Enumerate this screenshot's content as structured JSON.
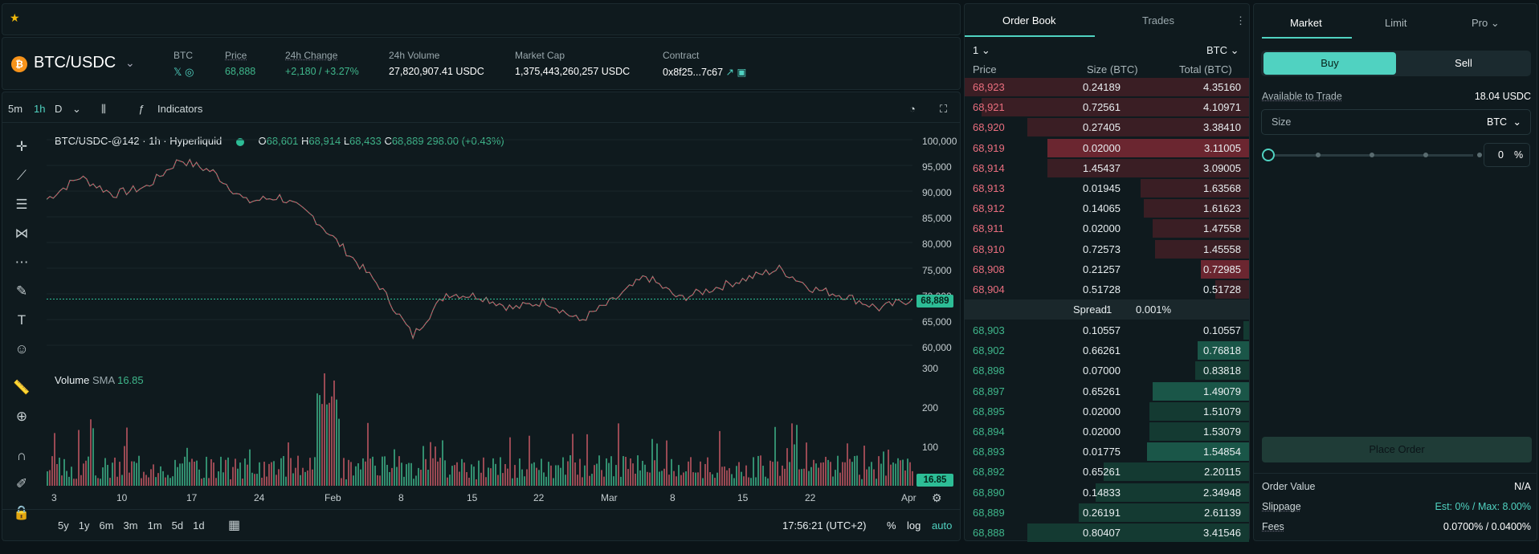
{
  "market": {
    "pair": "BTC/USDC",
    "base": "BTC",
    "price_label": "Price",
    "price": "68,888",
    "change_label": "24h Change",
    "change": "+2,180 / +3.27%",
    "volume_label": "24h Volume",
    "volume": "27,820,907.41 USDC",
    "cap_label": "Market Cap",
    "cap": "1,375,443,260,257 USDC",
    "contract_label": "Contract",
    "contract": "0x8f25...7c67"
  },
  "toolbar": {
    "intervals": [
      "5m",
      "1h",
      "D"
    ],
    "indicators": "Indicators"
  },
  "legend": {
    "title": "BTC/USDC-@142 · 1h · Hyperliquid",
    "o_label": "O",
    "o": "68,601",
    "h_label": "H",
    "h": "68,914",
    "l_label": "L",
    "l": "68,433",
    "c_label": "C",
    "c": "68,889",
    "chg": "298.00 (+0.43%)",
    "volume": "Volume",
    "sma": "SMA",
    "sma_val": "16.85"
  },
  "chart_data": {
    "type": "line",
    "title": "BTC/USDC-@142 · 1h · Hyperliquid",
    "y_ticks": [
      "100,000",
      "95,000",
      "90,000",
      "85,000",
      "80,000",
      "75,000",
      "70,000",
      "65,000",
      "60,000"
    ],
    "vol_ticks": [
      "300",
      "200",
      "100"
    ],
    "x_ticks": [
      "3",
      "10",
      "17",
      "24",
      "Feb",
      "8",
      "15",
      "22",
      "Mar",
      "8",
      "15",
      "22",
      "Apr"
    ],
    "last_price": "68,889",
    "last_volume": "16.85",
    "ylim": [
      57000,
      101000
    ],
    "x": [
      "Jan 3",
      "Jan 6",
      "Jan 10",
      "Jan 13",
      "Jan 17",
      "Jan 20",
      "Jan 24",
      "Jan 27",
      "Jan 30",
      "Feb 2",
      "Feb 5",
      "Feb 8",
      "Feb 11",
      "Feb 15",
      "Feb 19",
      "Feb 22",
      "Feb 26",
      "Mar 1",
      "Mar 4",
      "Mar 8",
      "Mar 11",
      "Mar 15",
      "Mar 18",
      "Mar 22",
      "Mar 25",
      "Mar 29",
      "Apr 1"
    ],
    "values": [
      89000,
      93500,
      90000,
      91500,
      97000,
      94500,
      88500,
      89500,
      85500,
      78500,
      71500,
      61500,
      70000,
      69500,
      67000,
      68500,
      64500,
      68500,
      73500,
      69000,
      71000,
      73000,
      75000,
      71000,
      69500,
      67000,
      68900
    ]
  },
  "footer": {
    "ranges": [
      "5y",
      "1y",
      "6m",
      "3m",
      "1m",
      "5d",
      "1d"
    ],
    "time": "17:56:21 (UTC+2)",
    "pct": "%",
    "log": "log",
    "auto": "auto"
  },
  "book": {
    "tab1": "Order Book",
    "tab2": "Trades",
    "tick": "1",
    "unit": "BTC",
    "h_price": "Price",
    "h_size": "Size (BTC)",
    "h_total": "Total (BTC)",
    "asks": [
      {
        "p": "68,923",
        "s": "0.24189",
        "t": "4.35160",
        "d": 1.0
      },
      {
        "p": "68,921",
        "s": "0.72561",
        "t": "4.10971",
        "d": 0.94
      },
      {
        "p": "68,920",
        "s": "0.27405",
        "t": "3.38410",
        "d": 0.78
      },
      {
        "p": "68,919",
        "s": "0.02000",
        "t": "3.11005",
        "d": 0.71,
        "hl": 1
      },
      {
        "p": "68,914",
        "s": "1.45437",
        "t": "3.09005",
        "d": 0.71
      },
      {
        "p": "68,913",
        "s": "0.01945",
        "t": "1.63568",
        "d": 0.38
      },
      {
        "p": "68,912",
        "s": "0.14065",
        "t": "1.61623",
        "d": 0.37
      },
      {
        "p": "68,911",
        "s": "0.02000",
        "t": "1.47558",
        "d": 0.34
      },
      {
        "p": "68,910",
        "s": "0.72573",
        "t": "1.45558",
        "d": 0.33
      },
      {
        "p": "68,908",
        "s": "0.21257",
        "t": "0.72985",
        "d": 0.17,
        "hl": 1
      },
      {
        "p": "68,904",
        "s": "0.51728",
        "t": "0.51728",
        "d": 0.12
      }
    ],
    "spread_label": "Spread",
    "spread": "1",
    "spread_pct": "0.001%",
    "bids": [
      {
        "p": "68,903",
        "s": "0.10557",
        "t": "0.10557",
        "d": 0.02
      },
      {
        "p": "68,902",
        "s": "0.66261",
        "t": "0.76818",
        "d": 0.18,
        "hl": 1
      },
      {
        "p": "68,898",
        "s": "0.07000",
        "t": "0.83818",
        "d": 0.19
      },
      {
        "p": "68,897",
        "s": "0.65261",
        "t": "1.49079",
        "d": 0.34,
        "hl": 1
      },
      {
        "p": "68,895",
        "s": "0.02000",
        "t": "1.51079",
        "d": 0.35
      },
      {
        "p": "68,894",
        "s": "0.02000",
        "t": "1.53079",
        "d": 0.35
      },
      {
        "p": "68,893",
        "s": "0.01775",
        "t": "1.54854",
        "d": 0.36,
        "hl": 1
      },
      {
        "p": "68,892",
        "s": "0.65261",
        "t": "2.20115",
        "d": 0.51
      },
      {
        "p": "68,890",
        "s": "0.14833",
        "t": "2.34948",
        "d": 0.54
      },
      {
        "p": "68,889",
        "s": "0.26191",
        "t": "2.61139",
        "d": 0.6
      },
      {
        "p": "68,888",
        "s": "0.80407",
        "t": "3.41546",
        "d": 0.78
      }
    ]
  },
  "trade": {
    "tabs": [
      "Market",
      "Limit",
      "Pro"
    ],
    "buy": "Buy",
    "sell": "Sell",
    "avail_label": "Available to Trade",
    "avail": "18.04 USDC",
    "size": "Size",
    "size_unit": "BTC",
    "pct": "0",
    "pct_sym": "%",
    "place": "Place Order",
    "ov_label": "Order Value",
    "ov": "N/A",
    "slip_label": "Slippage",
    "slip": "Est: 0% / Max: 8.00%",
    "fee_label": "Fees",
    "fee": "0.0700% / 0.0400%"
  },
  "colors": {
    "up": "#3fb68b",
    "down": "#ea6e7e",
    "accent": "#50d2c1"
  }
}
